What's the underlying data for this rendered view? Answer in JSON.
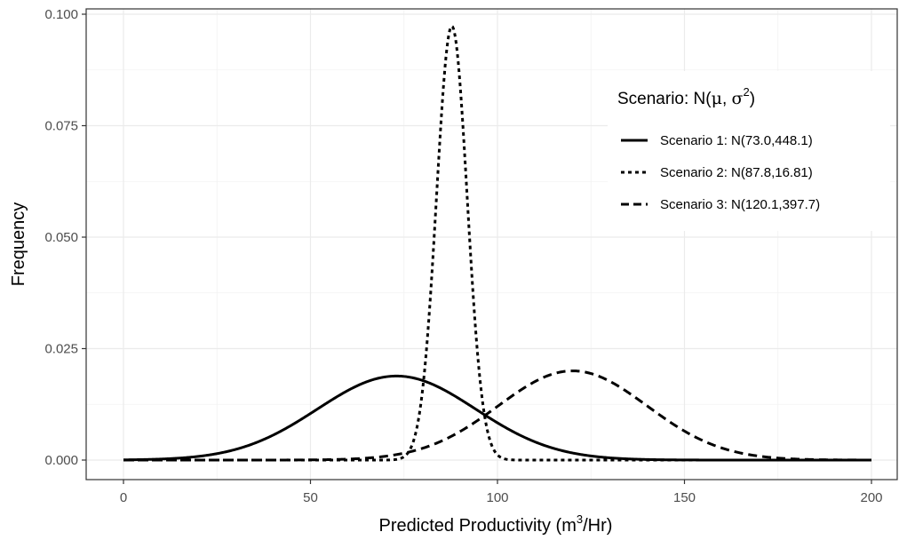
{
  "chart_data": {
    "type": "line",
    "xlabel": "Predicted Productivity",
    "xlabel_unit": {
      "base": "m",
      "sup": "3",
      "rest": "/Hr"
    },
    "ylabel": "Frequency",
    "xlim": [
      0,
      200
    ],
    "ylim": [
      0,
      0.1
    ],
    "x_ticks": [
      0,
      50,
      100,
      150,
      200
    ],
    "x_tick_labels": [
      "0",
      "50",
      "100",
      "150",
      "200"
    ],
    "y_ticks": [
      0,
      0.025,
      0.05,
      0.075,
      0.1
    ],
    "y_tick_labels": [
      "0.000",
      "0.025",
      "0.050",
      "0.075",
      "0.100"
    ],
    "grid": true,
    "legend": {
      "placement": "top-right",
      "title": {
        "prefix": "Scenario: N(",
        "mu": "μ",
        "sep": ", ",
        "sigma": "σ",
        "sup": "2",
        "suffix": ")"
      }
    },
    "series": [
      {
        "name": "Scenario 1: N(73.0,448.1)",
        "mean": 73.0,
        "variance": 448.1,
        "line_style": "solid"
      },
      {
        "name": "Scenario 2: N(87.8,16.81)",
        "mean": 87.8,
        "variance": 16.81,
        "line_style": "dotted"
      },
      {
        "name": "Scenario 3: N(120.1,397.7)",
        "mean": 120.1,
        "variance": 397.7,
        "line_style": "dashed"
      }
    ]
  }
}
